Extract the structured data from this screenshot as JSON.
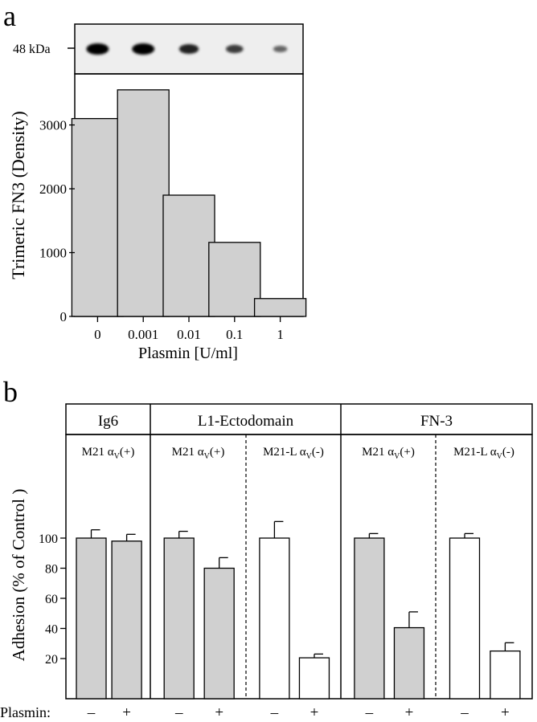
{
  "chart_data": [
    {
      "type": "bar",
      "panel_label": "a",
      "blot": {
        "marker_label": "48 kDa",
        "band_intensity": [
          1.0,
          1.0,
          0.75,
          0.55,
          0.25
        ]
      },
      "categories": [
        "0",
        "0.001",
        "0.01",
        "0.1",
        "1"
      ],
      "values": [
        3100,
        3550,
        1900,
        1160,
        280
      ],
      "xlabel": "Plasmin [U/ml]",
      "ylabel": "Trimeric FN3 (Density)",
      "yticks": [
        0,
        1000,
        2000,
        3000
      ],
      "ylim": [
        0,
        3800
      ],
      "bar_color": "#d0d0d0",
      "grid": false
    },
    {
      "type": "bar",
      "panel_label": "b",
      "ylabel": "Adhesion  (% of Control )",
      "yticks": [
        20,
        40,
        60,
        80,
        100
      ],
      "ylim": [
        0,
        125
      ],
      "groups": [
        {
          "label": "Ig6",
          "subgroups": [
            {
              "label_pre": "M21 α",
              "label_sub": "V",
              "label_post": "(+)",
              "fill": "#d0d0d0",
              "values": [
                100,
                98
              ],
              "errors": [
                5.5,
                4.5
              ],
              "treatment": [
                "–",
                "+"
              ]
            }
          ]
        },
        {
          "label": "L1-Ectodomain",
          "subgroups": [
            {
              "label_pre": "M21 α",
              "label_sub": "V",
              "label_post": "(+)",
              "fill": "#d0d0d0",
              "values": [
                100,
                80
              ],
              "errors": [
                4.5,
                7
              ],
              "treatment": [
                "–",
                "+"
              ]
            },
            {
              "label_pre": "M21-L α",
              "label_sub": "V",
              "label_post": "(-)",
              "fill": "#ffffff",
              "values": [
                100,
                20.5
              ],
              "errors": [
                11,
                2.5
              ],
              "treatment": [
                "–",
                "+"
              ]
            }
          ]
        },
        {
          "label": "FN-3",
          "subgroups": [
            {
              "label_pre": "M21 α",
              "label_sub": "V",
              "label_post": "(+)",
              "fill": "#d0d0d0",
              "values": [
                100,
                40.5
              ],
              "errors": [
                3,
                10.5
              ],
              "treatment": [
                "–",
                "+"
              ]
            },
            {
              "label_pre": "M21-L α",
              "label_sub": "V",
              "label_post": "(-)",
              "fill": "#ffffff",
              "values": [
                100,
                25
              ],
              "errors": [
                3,
                5.5
              ],
              "treatment": [
                "–",
                "+"
              ]
            }
          ]
        }
      ],
      "treatment_label": "Plasmin:",
      "grid": false
    }
  ]
}
